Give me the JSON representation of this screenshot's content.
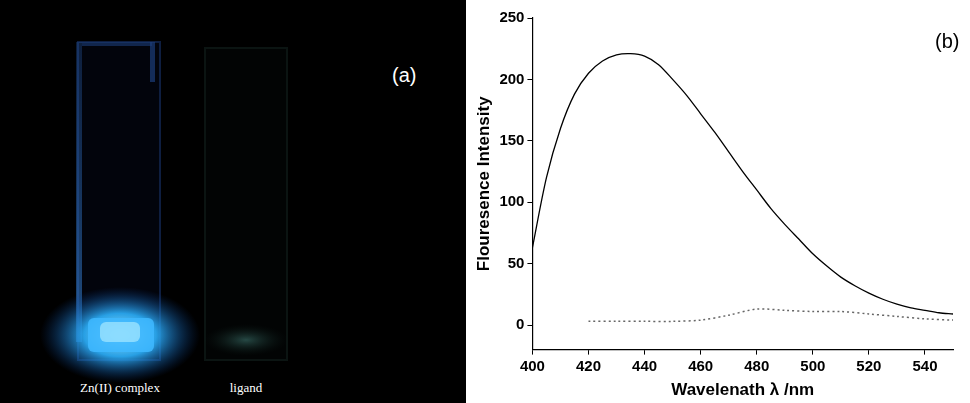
{
  "photo": {
    "label": "(a)",
    "samples": [
      "Zn(II) complex",
      "ligand"
    ]
  },
  "chart_data": {
    "type": "line",
    "annotation": "(b)",
    "x_label": "Wavelenath λ /nm",
    "y_label": "Flouresence Intensity",
    "series": [
      {
        "color": "#000000",
        "line_style": "solid",
        "x": [
          400,
          405,
          410,
          415,
          420,
          425,
          430,
          435,
          440,
          445,
          450,
          455,
          460,
          465,
          470,
          475,
          480,
          485,
          490,
          495,
          500,
          505,
          510,
          515,
          520,
          525,
          530,
          535,
          540,
          545,
          550
        ],
        "values": [
          63,
          120,
          160,
          188,
          205,
          215,
          220,
          221,
          219,
          212,
          200,
          187,
          172,
          157,
          141,
          125,
          110,
          95,
          82,
          70,
          58,
          48,
          39,
          32,
          26,
          21,
          17,
          14,
          12,
          10,
          9
        ]
      },
      {
        "color": "#666666",
        "line_style": "dotted",
        "x": [
          420,
          430,
          440,
          450,
          460,
          470,
          480,
          490,
          500,
          510,
          520,
          530,
          540,
          550
        ],
        "values": [
          3,
          3,
          3,
          3,
          4,
          8,
          13,
          12,
          11,
          11,
          9,
          7,
          5,
          4
        ]
      }
    ],
    "xlim": [
      400,
      550
    ],
    "xticks": [
      400,
      420,
      440,
      460,
      480,
      500,
      520,
      540
    ],
    "ylim": [
      -20,
      250
    ],
    "yticks": [
      0,
      50,
      100,
      150,
      200,
      250
    ],
    "grid": false
  }
}
